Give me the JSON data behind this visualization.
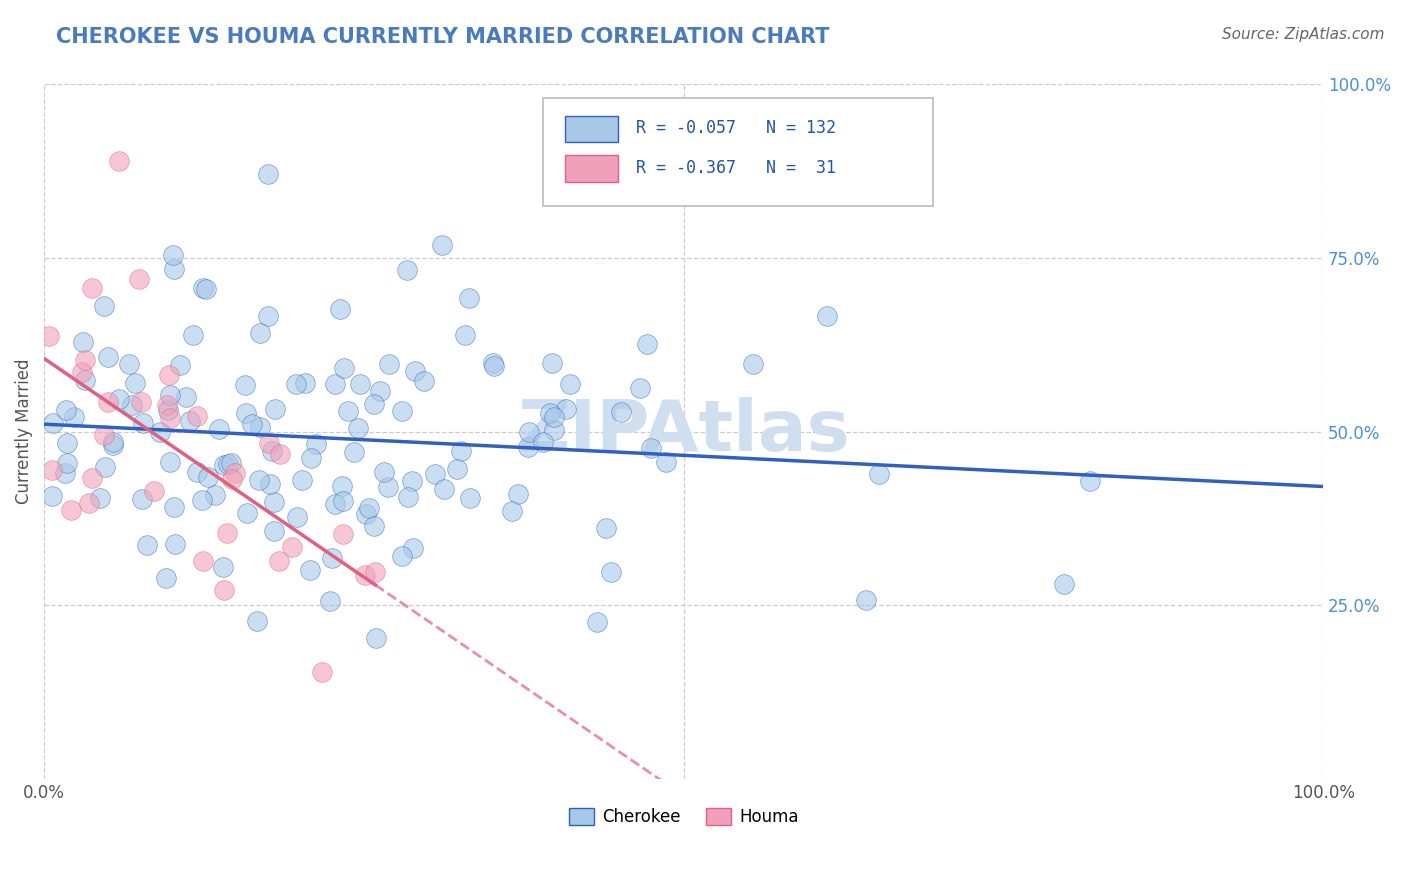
{
  "title": "CHEROKEE VS HOUMA CURRENTLY MARRIED CORRELATION CHART",
  "source": "Source: ZipAtlas.com",
  "ylabel": "Currently Married",
  "xlim": [
    0.0,
    1.0
  ],
  "ylim": [
    0.0,
    1.0
  ],
  "y_ticks": [
    0.25,
    0.5,
    0.75,
    1.0
  ],
  "y_tick_labels": [
    "25.0%",
    "50.0%",
    "75.0%",
    "100.0%"
  ],
  "cherokee_R": -0.057,
  "cherokee_N": 132,
  "houma_R": -0.367,
  "houma_N": 31,
  "cherokee_color": "#a8c8e8",
  "houma_color": "#f0a0b8",
  "cherokee_line_color": "#3060c0",
  "houma_line_color": "#e06080",
  "background_color": "#ffffff",
  "grid_color": "#cccccc",
  "title_color": "#4a7bbf",
  "watermark_color": "#d0dff0",
  "legend_R_color": "#2255aa",
  "seed": 42
}
